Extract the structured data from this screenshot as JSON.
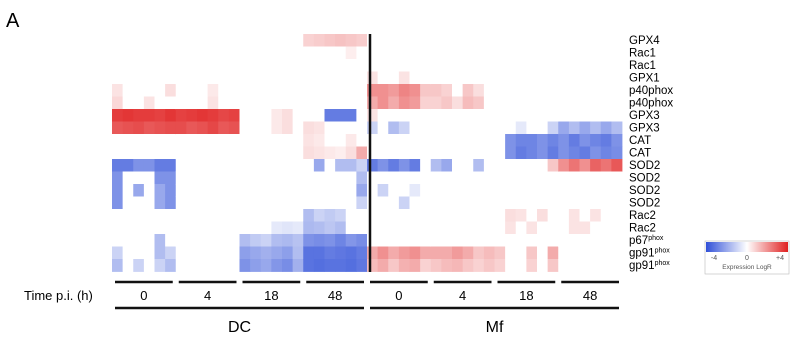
{
  "panel_label": "A",
  "chart_data": {
    "type": "heatmap",
    "title": "",
    "rows": [
      "GPX4",
      "Rac1",
      "Rac1",
      "GPX1",
      "p40phox",
      "p40phox",
      "GPX3",
      "GPX3",
      "CAT",
      "CAT",
      "SOD2",
      "SOD2",
      "SOD2",
      "SOD2",
      "Rac2",
      "Rac2",
      "p67phox",
      "gp91phox",
      "gp91phox"
    ],
    "row_labels": [
      {
        "base": "GPX4",
        "sup": ""
      },
      {
        "base": "Rac1",
        "sup": ""
      },
      {
        "base": "Rac1",
        "sup": ""
      },
      {
        "base": "GPX1",
        "sup": ""
      },
      {
        "base": "p40phox",
        "sup": ""
      },
      {
        "base": "p40phox",
        "sup": ""
      },
      {
        "base": "GPX3",
        "sup": ""
      },
      {
        "base": "GPX3",
        "sup": ""
      },
      {
        "base": "CAT",
        "sup": ""
      },
      {
        "base": "CAT",
        "sup": ""
      },
      {
        "base": "SOD2",
        "sup": ""
      },
      {
        "base": "SOD2",
        "sup": ""
      },
      {
        "base": "SOD2",
        "sup": ""
      },
      {
        "base": "SOD2",
        "sup": ""
      },
      {
        "base": "Rac2",
        "sup": ""
      },
      {
        "base": "Rac2",
        "sup": ""
      },
      {
        "base": "p67",
        "sup": "phox"
      },
      {
        "base": "gp91",
        "sup": "phox"
      },
      {
        "base": "gp91",
        "sup": "phox"
      }
    ],
    "x_label": "Time p.i. (h)",
    "time_points": [
      "0",
      "4",
      "18",
      "48",
      "0",
      "4",
      "18",
      "48"
    ],
    "groups": [
      {
        "name": "DC",
        "columns": [
          0,
          1,
          2,
          3
        ]
      },
      {
        "name": "Mf",
        "columns": [
          4,
          5,
          6,
          7
        ]
      }
    ],
    "columns_per_time_point": 6,
    "colorbar": {
      "min": -4,
      "max": 4,
      "tick_labels": [
        "-4",
        "0",
        "+4"
      ],
      "label": "Expression LogR",
      "colors": [
        "#3050d8",
        "#ffffff",
        "#e02020"
      ]
    },
    "values_by_block": [
      [
        [
          0,
          0,
          0,
          0,
          0,
          0
        ],
        [
          0,
          0,
          0,
          0,
          0,
          0
        ],
        [
          0,
          0,
          0,
          0,
          0,
          0
        ],
        [
          0,
          0,
          0,
          0,
          0,
          0
        ],
        [
          0.5,
          0,
          0,
          0,
          0,
          0.6
        ],
        [
          0.7,
          0,
          0,
          0.5,
          0,
          0
        ],
        [
          3.5,
          3.6,
          3.5,
          3.5,
          3.4,
          3.6
        ],
        [
          3.0,
          3.1,
          3.2,
          3.0,
          3.1,
          3.2
        ],
        [
          0,
          0,
          0,
          0,
          0,
          0
        ],
        [
          0,
          0,
          0,
          0,
          0,
          0
        ],
        [
          -3.0,
          -3.0,
          -2.5,
          -2.5,
          -3.0,
          -3.0
        ],
        [
          -2.5,
          0,
          0,
          0,
          -2.5,
          -2.5
        ],
        [
          -2.5,
          0,
          -2.0,
          0,
          -2.0,
          -2.5
        ],
        [
          -2.5,
          0,
          0,
          0,
          -2.0,
          -2.5
        ],
        [
          0,
          0,
          0,
          0,
          0,
          0
        ],
        [
          0,
          0,
          0,
          0,
          0,
          0
        ],
        [
          0,
          0,
          0,
          0,
          -1.5,
          0
        ],
        [
          -1.0,
          0,
          0,
          0,
          -1.5,
          -1.0
        ],
        [
          -1.5,
          0,
          -1.0,
          0,
          -1.0,
          -1.5
        ]
      ],
      [
        [
          0,
          0,
          0,
          0,
          0,
          0
        ],
        [
          0,
          0,
          0,
          0,
          0,
          0
        ],
        [
          0,
          0,
          0,
          0,
          0,
          0
        ],
        [
          0,
          0,
          0,
          0,
          0,
          0
        ],
        [
          0,
          0,
          0,
          0.4,
          0,
          0
        ],
        [
          0,
          0,
          0,
          0.5,
          0,
          0
        ],
        [
          3.4,
          3.5,
          3.6,
          3.5,
          3.3,
          3.4
        ],
        [
          3.2,
          3.0,
          3.1,
          3.3,
          3.0,
          3.1
        ],
        [
          0,
          0,
          0,
          0,
          0,
          0
        ],
        [
          0,
          0,
          0,
          0,
          0,
          0
        ],
        [
          0,
          0,
          0,
          0,
          0,
          0
        ],
        [
          0,
          0,
          0,
          0,
          0,
          0
        ],
        [
          0,
          0,
          0,
          0,
          0,
          0
        ],
        [
          0,
          0,
          0,
          0,
          0,
          0
        ],
        [
          0,
          0,
          0,
          0,
          0,
          0
        ],
        [
          0,
          0,
          0,
          0,
          0,
          0
        ],
        [
          0,
          0,
          0,
          0,
          0,
          0
        ],
        [
          0,
          0,
          0,
          0,
          0,
          0
        ],
        [
          0,
          0,
          0,
          0,
          0,
          0
        ]
      ],
      [
        [
          0,
          0,
          0,
          0,
          0,
          0
        ],
        [
          0,
          0,
          0,
          0,
          0,
          0
        ],
        [
          0,
          0,
          0,
          0,
          0,
          0
        ],
        [
          0,
          0,
          0,
          0,
          0,
          0
        ],
        [
          0,
          0,
          0,
          0,
          0,
          0
        ],
        [
          0,
          0,
          0,
          0,
          0,
          0
        ],
        [
          0,
          0,
          0,
          0.4,
          0.6,
          0
        ],
        [
          0,
          0,
          0,
          0.4,
          0.6,
          0
        ],
        [
          0,
          0,
          0,
          0,
          0,
          0
        ],
        [
          0,
          0,
          0,
          0,
          0,
          0
        ],
        [
          0,
          0,
          0,
          0,
          0,
          0
        ],
        [
          0,
          0,
          0,
          0,
          0,
          0
        ],
        [
          0,
          0,
          0,
          0,
          0,
          0
        ],
        [
          0,
          0,
          0,
          0,
          0,
          0
        ],
        [
          0,
          0,
          0,
          0,
          0,
          0
        ],
        [
          0,
          0,
          0,
          -0.5,
          -0.6,
          -0.5
        ],
        [
          -1.5,
          -1.2,
          -1.0,
          -1.5,
          -1.6,
          -1.4
        ],
        [
          -2.2,
          -2.0,
          -1.8,
          -2.0,
          -2.2,
          -1.5
        ],
        [
          -2.5,
          -2.2,
          -2.0,
          -2.4,
          -2.6,
          -1.8
        ]
      ],
      [
        [
          0.8,
          0.9,
          1.0,
          1.1,
          1.0,
          0.9
        ],
        [
          0,
          0,
          0,
          0,
          0.3,
          0
        ],
        [
          0,
          0,
          0,
          0,
          0,
          0
        ],
        [
          0,
          0,
          0,
          0,
          0,
          0
        ],
        [
          0,
          0,
          0,
          0,
          0,
          0
        ],
        [
          0,
          0,
          0,
          0,
          0,
          0
        ],
        [
          0,
          0,
          -3.0,
          -3.0,
          -3.0,
          0
        ],
        [
          0.6,
          0.5,
          0,
          0,
          0,
          0
        ],
        [
          0.5,
          0.4,
          0,
          0,
          0.4,
          0
        ],
        [
          0.6,
          0.5,
          0.4,
          0.3,
          0.6,
          1.5
        ],
        [
          0,
          -2.0,
          0,
          -1.5,
          -1.5,
          -1.0
        ],
        [
          0,
          0,
          0,
          0,
          0,
          -1.5
        ],
        [
          0,
          0,
          0,
          0,
          0,
          -2.0
        ],
        [
          0,
          0,
          0,
          0,
          0,
          -1.0
        ],
        [
          -1.5,
          -1.0,
          -1.2,
          -1.0,
          0,
          0
        ],
        [
          -1.6,
          -1.5,
          -1.3,
          -1.5,
          0,
          0
        ],
        [
          -2.5,
          -2.6,
          -2.5,
          -2.8,
          -2.4,
          -2.6
        ],
        [
          -3.2,
          -3.2,
          -3.0,
          -3.1,
          -3.2,
          -3.0
        ],
        [
          -3.2,
          -3.3,
          -3.2,
          -3.2,
          -3.3,
          -3.1
        ]
      ],
      [
        [
          0,
          0,
          0,
          0,
          0,
          0
        ],
        [
          0,
          0,
          0,
          0,
          0,
          0
        ],
        [
          0,
          0,
          0,
          0,
          0,
          0
        ],
        [
          0.5,
          0,
          0,
          0.5,
          0,
          0
        ],
        [
          2.0,
          2.0,
          1.8,
          2.2,
          2.0,
          1.0
        ],
        [
          1.5,
          2.0,
          1.5,
          2.0,
          1.8,
          0.8
        ],
        [
          0.5,
          0,
          0,
          0,
          0,
          0
        ],
        [
          -1.0,
          0,
          -1.5,
          -1.0,
          0,
          0
        ],
        [
          0,
          0,
          0,
          0,
          0,
          0
        ],
        [
          0,
          0,
          0,
          0,
          0,
          0
        ],
        [
          -3.0,
          -2.5,
          -3.0,
          -2.5,
          -3.0,
          0
        ],
        [
          0,
          0,
          0,
          0,
          0,
          0
        ],
        [
          0,
          -1.0,
          0,
          0,
          -0.5,
          0
        ],
        [
          0,
          0,
          0,
          -1.0,
          0,
          0
        ],
        [
          0,
          0,
          0,
          0,
          0,
          0
        ],
        [
          0,
          0,
          0,
          0,
          0,
          0
        ],
        [
          0,
          0,
          0,
          0,
          0,
          0
        ],
        [
          1.5,
          2.0,
          1.5,
          1.8,
          2.0,
          1.5
        ],
        [
          1.2,
          1.5,
          1.0,
          1.4,
          1.5,
          0.8
        ]
      ],
      [
        [
          0,
          0,
          0,
          0,
          0,
          0
        ],
        [
          0,
          0,
          0,
          0,
          0,
          0
        ],
        [
          0,
          0,
          0,
          0,
          0,
          0
        ],
        [
          0,
          0,
          0,
          0,
          0,
          0
        ],
        [
          1.0,
          0.8,
          0,
          1.0,
          0.6,
          0
        ],
        [
          0.8,
          1.0,
          0.6,
          1.2,
          1.0,
          0
        ],
        [
          0,
          0,
          0,
          0,
          0,
          0
        ],
        [
          0,
          0,
          0,
          0,
          0,
          0
        ],
        [
          0,
          0,
          0,
          0,
          0,
          0
        ],
        [
          0,
          0,
          0,
          0,
          0,
          0
        ],
        [
          -1.5,
          -2.0,
          0,
          0,
          -1.5,
          0
        ],
        [
          0,
          0,
          0,
          0,
          0,
          0
        ],
        [
          0,
          0,
          0,
          0,
          0,
          0
        ],
        [
          0,
          0,
          0,
          0,
          0,
          0
        ],
        [
          0,
          0,
          0,
          0,
          0,
          0
        ],
        [
          0,
          0,
          0,
          0,
          0,
          0
        ],
        [
          0,
          0,
          0,
          0,
          0,
          0
        ],
        [
          1.5,
          1.5,
          1.8,
          1.5,
          1.0,
          1.2
        ],
        [
          1.0,
          1.2,
          1.3,
          1.0,
          0.8,
          1.0
        ]
      ],
      [
        [
          0,
          0,
          0,
          0,
          0,
          0
        ],
        [
          0,
          0,
          0,
          0,
          0,
          0
        ],
        [
          0,
          0,
          0,
          0,
          0,
          0
        ],
        [
          0,
          0,
          0,
          0,
          0,
          0
        ],
        [
          0,
          0,
          0,
          0,
          0,
          0
        ],
        [
          0,
          0,
          0,
          0,
          0,
          0
        ],
        [
          0,
          0,
          0,
          0,
          0,
          0
        ],
        [
          0,
          0,
          -0.5,
          0,
          0,
          -1.0
        ],
        [
          0,
          -2.5,
          -2.8,
          -2.8,
          -2.5,
          -2.8
        ],
        [
          0,
          -2.5,
          -3.0,
          -2.8,
          -2.5,
          -3.0
        ],
        [
          0,
          0,
          0,
          0,
          0,
          1.0
        ],
        [
          0,
          0,
          0,
          0,
          0,
          0
        ],
        [
          0,
          0,
          0,
          0,
          0,
          0
        ],
        [
          0,
          0,
          0,
          0,
          0,
          0
        ],
        [
          0,
          0.6,
          0.5,
          0,
          0.6,
          0
        ],
        [
          0,
          0.5,
          0,
          0.5,
          0,
          0
        ],
        [
          0,
          0,
          0,
          0,
          0,
          0
        ],
        [
          1.0,
          0,
          0,
          1.0,
          0,
          1.5
        ],
        [
          0.8,
          0,
          0,
          0.8,
          0,
          1.0
        ]
      ],
      [
        [
          0,
          0,
          0,
          0,
          0,
          0
        ],
        [
          0,
          0,
          0,
          0,
          0,
          0
        ],
        [
          0,
          0,
          0,
          0,
          0,
          0
        ],
        [
          0,
          0,
          0,
          0,
          0,
          0
        ],
        [
          0,
          0,
          0,
          0,
          0,
          0
        ],
        [
          0,
          0,
          0,
          0,
          0,
          0
        ],
        [
          0,
          0,
          0,
          0,
          0,
          0
        ],
        [
          -2.0,
          -1.5,
          -2.0,
          -1.5,
          -2.0,
          -1.5
        ],
        [
          -2.5,
          -3.0,
          -2.5,
          -2.8,
          -3.0,
          -2.5
        ],
        [
          -2.5,
          -2.8,
          -3.0,
          -2.5,
          -2.8,
          -2.6
        ],
        [
          2.0,
          2.5,
          2.0,
          2.8,
          2.5,
          3.0
        ],
        [
          0,
          0,
          0,
          0,
          0,
          0
        ],
        [
          0,
          0,
          0,
          0,
          0,
          0
        ],
        [
          0,
          0,
          0,
          0,
          0,
          0
        ],
        [
          0,
          0.5,
          0,
          0.5,
          0,
          0
        ],
        [
          0,
          0.5,
          0.5,
          0,
          0,
          0
        ],
        [
          0,
          0,
          0,
          0,
          0,
          0
        ],
        [
          0,
          0,
          0,
          0,
          0,
          0
        ],
        [
          0,
          0,
          0,
          0,
          0,
          0
        ]
      ]
    ]
  }
}
